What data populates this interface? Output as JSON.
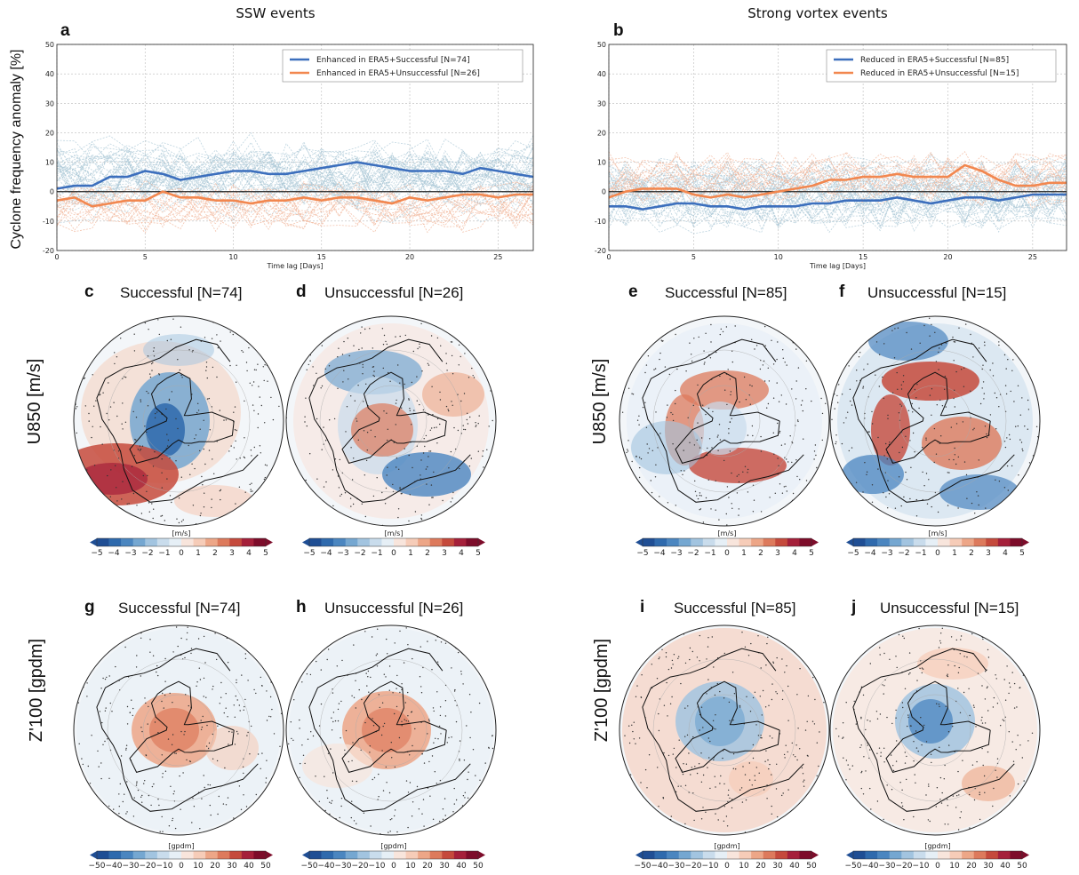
{
  "columns": {
    "left_title": "SSW events",
    "right_title": "Strong vortex events"
  },
  "row_labels": {
    "u850": "U850 [m/s]",
    "z100": "Z'100 [gpdm]"
  },
  "y_axis_label": "Cyclone frequency anomaly [%]",
  "colors": {
    "blue": "#3c6fbd",
    "orange": "#f2874f",
    "thin_blue": "#a9c7d6",
    "thin_orange": "#f1b79b",
    "zero_line": "#222222"
  },
  "colorbar_colors": [
    "#1f4e94",
    "#2f6aad",
    "#4b86c0",
    "#75a7d1",
    "#a2c4e0",
    "#c9dcec",
    "#e6eff6",
    "#f8e5dc",
    "#f6ccb8",
    "#eda687",
    "#dd7a5c",
    "#c54a3c",
    "#a5203a",
    "#7d0c2a"
  ],
  "maps": [
    {
      "letter": "c",
      "title": "Successful [N=74]",
      "unit": "[m/s]",
      "ticks": [
        "−5",
        "−4",
        "−3",
        "−2",
        "−1",
        "0",
        "1",
        "2",
        "3",
        "4",
        "5"
      ]
    },
    {
      "letter": "d",
      "title": "Unsuccessful [N=26]",
      "unit": "[m/s]",
      "ticks": [
        "−5",
        "−4",
        "−3",
        "−2",
        "−1",
        "0",
        "1",
        "2",
        "3",
        "4",
        "5"
      ]
    },
    {
      "letter": "e",
      "title": "Successful [N=85]",
      "unit": "[m/s]",
      "ticks": [
        "−5",
        "−4",
        "−3",
        "−2",
        "−1",
        "0",
        "1",
        "2",
        "3",
        "4",
        "5"
      ]
    },
    {
      "letter": "f",
      "title": "Unsuccessful [N=15]",
      "unit": "[m/s]",
      "ticks": [
        "−5",
        "−4",
        "−3",
        "−2",
        "−1",
        "0",
        "1",
        "2",
        "3",
        "4",
        "5"
      ]
    },
    {
      "letter": "g",
      "title": "Successful [N=74]",
      "unit": "[gpdm]",
      "ticks": [
        "−50",
        "−40",
        "−30",
        "−20",
        "−10",
        "0",
        "10",
        "20",
        "30",
        "40",
        "50"
      ]
    },
    {
      "letter": "h",
      "title": "Unsuccessful [N=26]",
      "unit": "[gpdm]",
      "ticks": [
        "−50",
        "−40",
        "−30",
        "−20",
        "−10",
        "0",
        "10",
        "20",
        "30",
        "40",
        "50"
      ]
    },
    {
      "letter": "i",
      "title": "Successful [N=85]",
      "unit": "[gpdm]",
      "ticks": [
        "−50",
        "−40",
        "−30",
        "−20",
        "−10",
        "0",
        "10",
        "20",
        "30",
        "40",
        "50"
      ]
    },
    {
      "letter": "j",
      "title": "Unsuccessful [N=15]",
      "unit": "[gpdm]",
      "ticks": [
        "−50",
        "−40",
        "−30",
        "−20",
        "−10",
        "0",
        "10",
        "20",
        "30",
        "40",
        "50"
      ]
    }
  ],
  "chart_data": [
    {
      "letter": "a",
      "type": "line",
      "title": "SSW events",
      "xlabel": "Time lag [Days]",
      "ylabel": "Cyclone frequency anomaly [%]",
      "xlim": [
        0,
        27
      ],
      "ylim": [
        -20,
        50
      ],
      "xticks": [
        0,
        5,
        10,
        15,
        20,
        25
      ],
      "yticks": [
        -20,
        -10,
        0,
        10,
        20,
        30,
        40,
        50
      ],
      "grid": true,
      "legend_position": "top-right",
      "x": [
        0,
        1,
        2,
        3,
        4,
        5,
        6,
        7,
        8,
        9,
        10,
        11,
        12,
        13,
        14,
        15,
        16,
        17,
        18,
        19,
        20,
        21,
        22,
        23,
        24,
        25,
        26,
        27
      ],
      "series": [
        {
          "name": "Enhanced in ERA5+Successful [N=74]",
          "color_key": "blue",
          "values": [
            1,
            2,
            2,
            5,
            5,
            7,
            6,
            4,
            5,
            6,
            7,
            7,
            6,
            6,
            7,
            8,
            9,
            10,
            9,
            8,
            7,
            7,
            7,
            6,
            8,
            7,
            6,
            5
          ]
        },
        {
          "name": "Enhanced in ERA5+Unsuccessful [N=26]",
          "color_key": "orange",
          "values": [
            -3,
            -2,
            -5,
            -4,
            -3,
            -3,
            0,
            -2,
            -2,
            -3,
            -3,
            -4,
            -3,
            -3,
            -2,
            -3,
            -2,
            -2,
            -3,
            -4,
            -2,
            -3,
            -2,
            -1,
            -1,
            -2,
            -1,
            -1
          ]
        }
      ]
    },
    {
      "letter": "b",
      "type": "line",
      "title": "Strong vortex events",
      "xlabel": "Time lag [Days]",
      "ylabel": "",
      "xlim": [
        0,
        27
      ],
      "ylim": [
        -20,
        50
      ],
      "xticks": [
        0,
        5,
        10,
        15,
        20,
        25
      ],
      "yticks": [
        -20,
        -10,
        0,
        10,
        20,
        30,
        40,
        50
      ],
      "grid": true,
      "legend_position": "top-right",
      "x": [
        0,
        1,
        2,
        3,
        4,
        5,
        6,
        7,
        8,
        9,
        10,
        11,
        12,
        13,
        14,
        15,
        16,
        17,
        18,
        19,
        20,
        21,
        22,
        23,
        24,
        25,
        26,
        27
      ],
      "series": [
        {
          "name": "Reduced in ERA5+Successful [N=85]",
          "color_key": "blue",
          "values": [
            -5,
            -5,
            -6,
            -5,
            -4,
            -4,
            -5,
            -5,
            -6,
            -5,
            -5,
            -5,
            -4,
            -4,
            -3,
            -3,
            -3,
            -2,
            -3,
            -4,
            -3,
            -2,
            -2,
            -3,
            -2,
            -1,
            -1,
            -1
          ]
        },
        {
          "name": "Reduced in ERA5+Unsuccessful [N=15]",
          "color_key": "orange",
          "values": [
            -2,
            0,
            1,
            1,
            1,
            -1,
            -2,
            -1,
            -2,
            -1,
            0,
            1,
            2,
            4,
            4,
            5,
            5,
            6,
            5,
            5,
            5,
            9,
            7,
            4,
            2,
            2,
            3,
            3
          ]
        }
      ]
    }
  ]
}
